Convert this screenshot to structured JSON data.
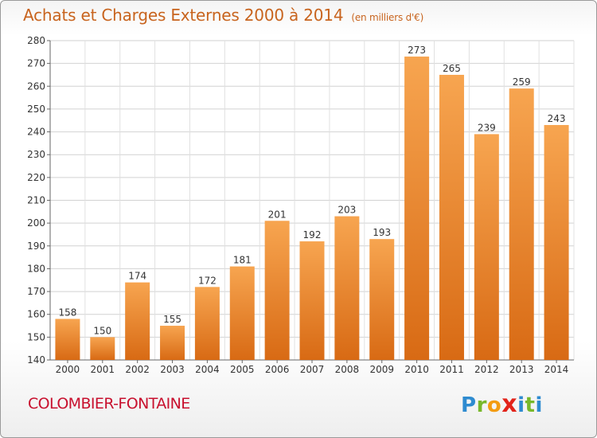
{
  "header": {
    "title": "Achats et Charges Externes 2000 à 2014",
    "subtitle": "(en milliers d'€)"
  },
  "footer": {
    "commune": "COLOMBIER-FONTAINE",
    "logo_letters": [
      "P",
      "r",
      "o",
      "x",
      "i",
      "t",
      "i"
    ]
  },
  "colors": {
    "bar_top": "#f7a550",
    "bar_bottom": "#d86a14",
    "title": "#c8641e",
    "commune": "#c8102e",
    "logo": [
      "#2e8bd0",
      "#78b82a",
      "#f39c12",
      "#e2231a",
      "#2e8bd0",
      "#78b82a",
      "#2e8bd0"
    ]
  },
  "chart_data": {
    "type": "bar",
    "title": "Achats et Charges Externes 2000 à 2014",
    "subtitle": "(en milliers d'€)",
    "categories": [
      "2000",
      "2001",
      "2002",
      "2003",
      "2004",
      "2005",
      "2006",
      "2007",
      "2008",
      "2009",
      "2010",
      "2011",
      "2012",
      "2013",
      "2014"
    ],
    "values": [
      158,
      150,
      174,
      155,
      172,
      181,
      201,
      192,
      203,
      193,
      273,
      265,
      239,
      259,
      243
    ],
    "ylim": [
      140,
      280
    ],
    "yticks": [
      140,
      150,
      160,
      170,
      180,
      190,
      200,
      210,
      220,
      230,
      240,
      250,
      260,
      270,
      280
    ],
    "grid": true,
    "data_labels": true
  }
}
